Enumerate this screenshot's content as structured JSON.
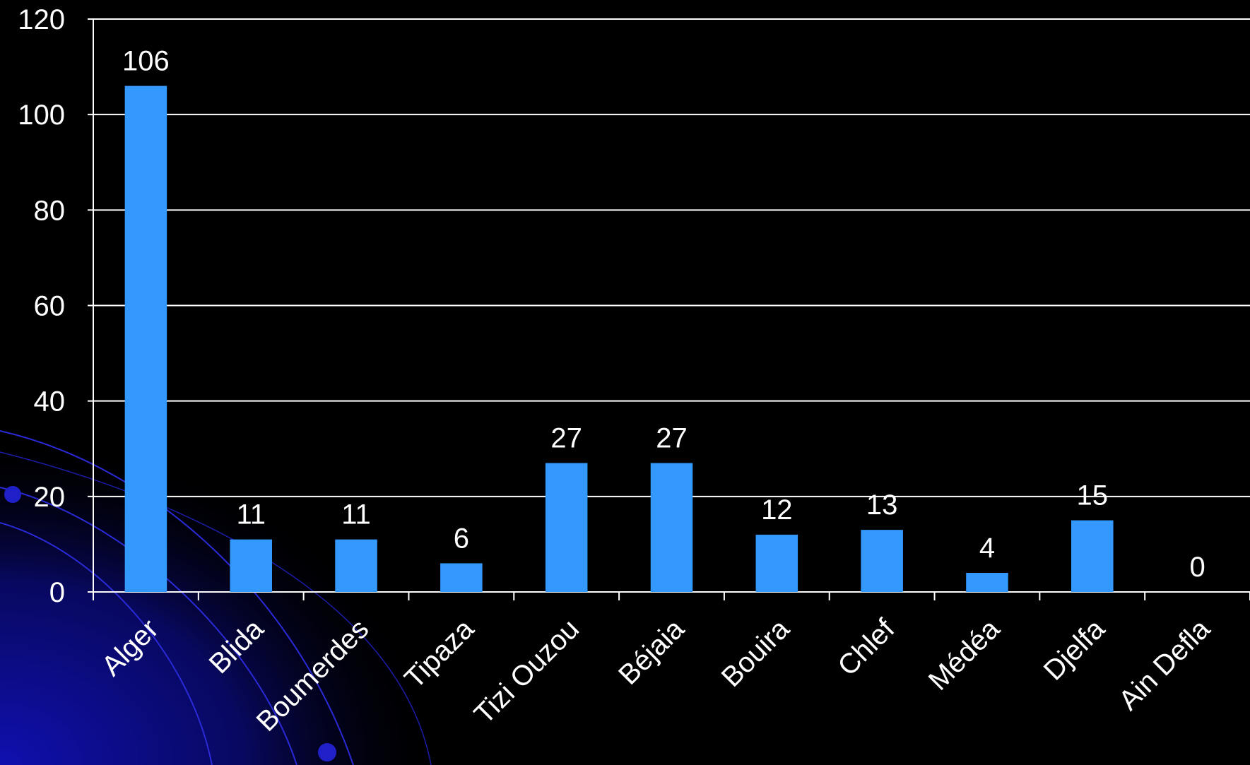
{
  "chart_data": {
    "type": "bar",
    "categories": [
      "Alger",
      "Blida",
      "Boumerdes",
      "Tipaza",
      "Tizi Ouzou",
      "Béjaia",
      "Bouira",
      "Chlef",
      "Médéa",
      "Djelfa",
      "Ain Defla"
    ],
    "values": [
      106,
      11,
      11,
      6,
      27,
      27,
      12,
      13,
      4,
      15,
      0
    ],
    "color": "#3399ff",
    "ylim": [
      0,
      120
    ],
    "yticks": [
      0,
      20,
      40,
      60,
      80,
      100,
      120
    ],
    "grid": true
  }
}
